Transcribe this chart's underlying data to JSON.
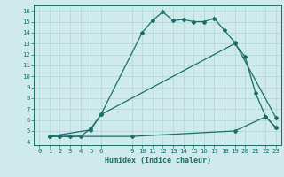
{
  "xlabel": "Humidex (Indice chaleur)",
  "ylabel": "",
  "bg_color": "#ceeaea",
  "grid_color": "#aed4d4",
  "line_color": "#1a6e6a",
  "xlim": [
    -0.5,
    23.5
  ],
  "ylim": [
    3.7,
    16.5
  ],
  "xtick_vals": [
    0,
    1,
    2,
    3,
    4,
    5,
    6,
    9,
    10,
    11,
    12,
    13,
    14,
    15,
    16,
    17,
    18,
    19,
    20,
    21,
    22,
    23
  ],
  "ytick_vals": [
    4,
    5,
    6,
    7,
    8,
    9,
    10,
    11,
    12,
    13,
    14,
    15,
    16
  ],
  "curve1_x": [
    1,
    2,
    3,
    4,
    5,
    6,
    10,
    11,
    12,
    13,
    14,
    15,
    16,
    17,
    18,
    19,
    23
  ],
  "curve1_y": [
    4.5,
    4.5,
    4.5,
    4.5,
    5.2,
    6.5,
    14.0,
    15.1,
    15.9,
    15.1,
    15.2,
    15.0,
    15.0,
    15.3,
    14.2,
    13.1,
    6.2
  ],
  "curve2_x": [
    1,
    5,
    6,
    19,
    20,
    21,
    22,
    23
  ],
  "curve2_y": [
    4.5,
    5.1,
    6.5,
    13.0,
    11.8,
    8.5,
    6.3,
    5.3
  ],
  "curve3_x": [
    1,
    2,
    9,
    19,
    22,
    23
  ],
  "curve3_y": [
    4.5,
    4.5,
    4.5,
    5.0,
    6.3,
    5.3
  ],
  "marker_size": 2.0,
  "line_width": 0.9,
  "xlabel_fontsize": 6.0,
  "tick_fontsize": 5.2
}
